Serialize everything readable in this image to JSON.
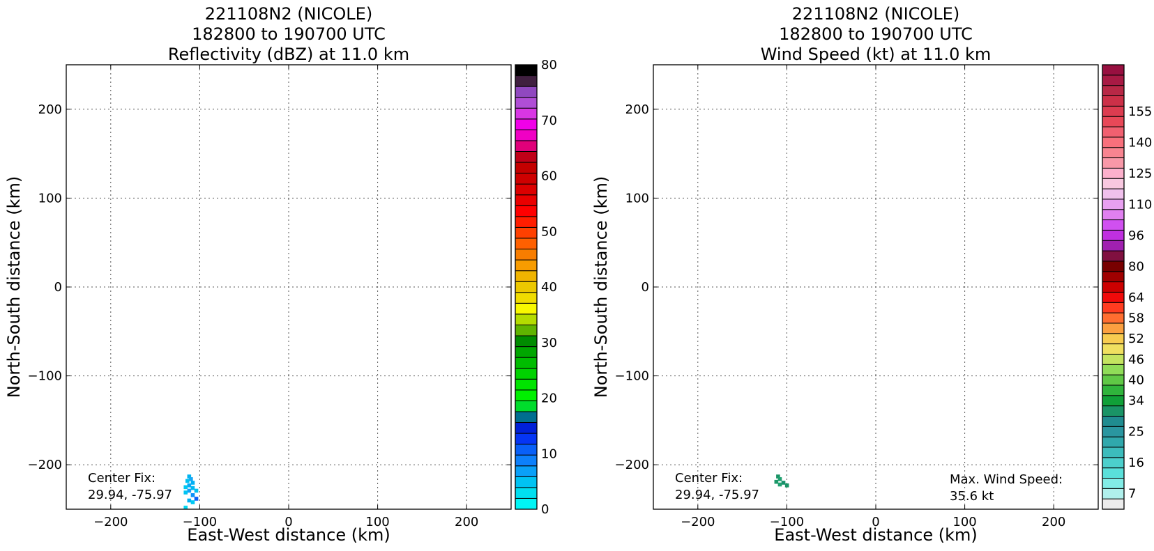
{
  "chart_data": [
    {
      "type": "heatmap",
      "title_lines": [
        "221108N2 (NICOLE)",
        "182800 to 190700 UTC",
        "Reflectivity (dBZ) at 11.0 km"
      ],
      "xlabel": "East-West distance (km)",
      "ylabel": "North-South distance (km)",
      "xlim": [
        -250,
        250
      ],
      "ylim": [
        -250,
        250
      ],
      "xticks": [
        -200,
        -100,
        0,
        100,
        200
      ],
      "yticks": [
        -200,
        -100,
        0,
        100,
        200
      ],
      "xtick_labels": [
        "−200",
        "−100",
        "0",
        "100",
        "200"
      ],
      "ytick_labels": [
        "−200",
        "−100",
        "0",
        "100",
        "200"
      ],
      "grid": true,
      "annotations": [
        {
          "name": "center-fix",
          "lines": [
            "Center Fix:",
            "29.94, -75.97"
          ]
        }
      ],
      "colorbar": {
        "min": 0,
        "max": 80,
        "ticks": [
          0,
          10,
          20,
          30,
          40,
          50,
          60,
          70,
          80
        ],
        "tick_labels": [
          "0",
          "10",
          "20",
          "30",
          "40",
          "50",
          "60",
          "70",
          "80"
        ],
        "colors": [
          "#00f5f5",
          "#00dff0",
          "#00c3f3",
          "#0aa0f8",
          "#0d80fb",
          "#0960f8",
          "#0535f5",
          "#0020d8",
          "#006e90",
          "#00dc2c",
          "#00f000",
          "#00e400",
          "#00d200",
          "#00bc00",
          "#00a600",
          "#008c00",
          "#60b400",
          "#b4dc00",
          "#f8f800",
          "#f0dc00",
          "#ecc800",
          "#f0b400",
          "#f89c00",
          "#f87d00",
          "#ff6000",
          "#ff4000",
          "#ff1e00",
          "#ff0000",
          "#ea0000",
          "#dc0000",
          "#ce0000",
          "#c40000",
          "#c00018",
          "#e0007a",
          "#f000c4",
          "#f000e8",
          "#d836e4",
          "#b04ed6",
          "#9048c0",
          "#402040",
          "#000000"
        ]
      },
      "cells": [
        {
          "x": -112,
          "y": -213,
          "color": "#00b4f0"
        },
        {
          "x": -110,
          "y": -216,
          "color": "#18a8f4"
        },
        {
          "x": -114,
          "y": -218,
          "color": "#00c0f2"
        },
        {
          "x": -108,
          "y": -220,
          "color": "#00b0f4"
        },
        {
          "x": -112,
          "y": -223,
          "color": "#0aa8f6"
        },
        {
          "x": -116,
          "y": -225,
          "color": "#00c8f2"
        },
        {
          "x": -108,
          "y": -226,
          "color": "#00b8f0"
        },
        {
          "x": -112,
          "y": -229,
          "color": "#14a0f8"
        },
        {
          "x": -116,
          "y": -231,
          "color": "#00c4f2"
        },
        {
          "x": -104,
          "y": -229,
          "color": "#00c0f0"
        },
        {
          "x": -108,
          "y": -234,
          "color": "#0a90f8"
        },
        {
          "x": -104,
          "y": -238,
          "color": "#0860f8"
        },
        {
          "x": -112,
          "y": -240,
          "color": "#00b0f4"
        },
        {
          "x": -108,
          "y": -242,
          "color": "#00c8f2"
        },
        {
          "x": -116,
          "y": -248,
          "color": "#00d8f2"
        }
      ]
    },
    {
      "type": "heatmap",
      "title_lines": [
        "221108N2 (NICOLE)",
        "182800 to 190700 UTC",
        "Wind Speed (kt) at 11.0 km"
      ],
      "xlabel": "East-West distance (km)",
      "ylabel": "North-South distance (km)",
      "xlim": [
        -250,
        250
      ],
      "ylim": [
        -250,
        250
      ],
      "xticks": [
        -200,
        -100,
        0,
        100,
        200
      ],
      "yticks": [
        -200,
        -100,
        0,
        100,
        200
      ],
      "xtick_labels": [
        "−200",
        "−100",
        "0",
        "100",
        "200"
      ],
      "ytick_labels": [
        "−200",
        "−100",
        "0",
        "100",
        "200"
      ],
      "grid": true,
      "annotations": [
        {
          "name": "center-fix",
          "lines": [
            "Center Fix:",
            "29.94, -75.97"
          ]
        },
        {
          "name": "max-wind-speed",
          "lines": [
            "Max. Wind Speed:",
            "35.6 kt"
          ]
        }
      ],
      "colorbar": {
        "levels": 44,
        "ticks": [
          7,
          16,
          25,
          34,
          40,
          46,
          52,
          58,
          64,
          80,
          96,
          110,
          125,
          140,
          155
        ],
        "tick_labels": [
          "7",
          "16",
          "25",
          "34",
          "40",
          "46",
          "52",
          "58",
          "64",
          "80",
          "96",
          "110",
          "125",
          "140",
          "155"
        ],
        "tick_level_index": [
          1,
          4,
          7,
          10,
          12,
          14,
          16,
          18,
          20,
          23,
          26,
          29,
          32,
          35,
          38
        ],
        "colors": [
          "#ececec",
          "#b0f0ec",
          "#82ece6",
          "#5ae0da",
          "#4ccfcc",
          "#3cbcbc",
          "#30a8ac",
          "#2a96a0",
          "#208c90",
          "#1a9466",
          "#10a038",
          "#30b43c",
          "#60c846",
          "#90dc58",
          "#c4e460",
          "#f0e060",
          "#f8cc50",
          "#fca040",
          "#ff6e30",
          "#ff3c20",
          "#f00a0a",
          "#cc0000",
          "#a00000",
          "#780000",
          "#801040",
          "#a020b0",
          "#c030e0",
          "#d050f0",
          "#e080f0",
          "#e8a0f0",
          "#f0c0ec",
          "#f8c8e0",
          "#fcb0cc",
          "#f898a8",
          "#f88490",
          "#f8707c",
          "#f06070",
          "#e84858",
          "#dc3c50",
          "#cc3048",
          "#b82846",
          "#a81a44",
          "#981040"
        ]
      },
      "cells": [
        {
          "x": -110,
          "y": -213,
          "color": "#1a9466"
        },
        {
          "x": -108,
          "y": -216,
          "color": "#20a070"
        },
        {
          "x": -112,
          "y": -219,
          "color": "#1c9868"
        },
        {
          "x": -104,
          "y": -220,
          "color": "#18906a"
        },
        {
          "x": -100,
          "y": -223,
          "color": "#1a9466"
        },
        {
          "x": -108,
          "y": -222,
          "color": "#22a070"
        }
      ]
    }
  ]
}
